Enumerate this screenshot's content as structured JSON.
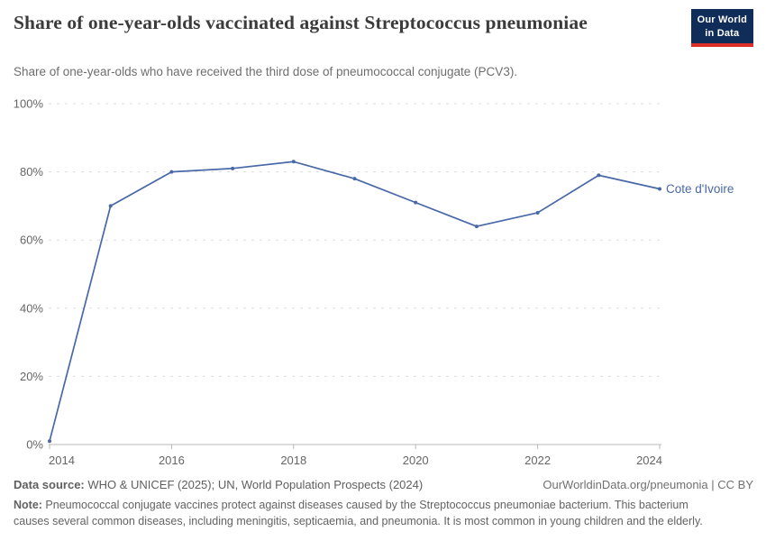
{
  "header": {
    "title": "Share of one-year-olds vaccinated against Streptococcus pneumoniae",
    "subtitle": "Share of one-year-olds who have received the third dose of pneumococcal conjugate (PCV3).",
    "logo": {
      "line1": "Our World",
      "line2": "in Data",
      "bg_color": "#102d59",
      "accent_color": "#dc2f27"
    }
  },
  "chart_data": {
    "type": "line",
    "title": "Share of one-year-olds vaccinated against Streptococcus pneumoniae",
    "x": [
      2014,
      2015,
      2016,
      2017,
      2018,
      2019,
      2020,
      2021,
      2022,
      2023,
      2024
    ],
    "series": [
      {
        "name": "Cote d'Ivoire",
        "color": "#4868a8",
        "values": [
          1,
          70,
          80,
          81,
          83,
          78,
          71,
          64,
          68,
          79,
          75
        ]
      }
    ],
    "end_label": "Cote d'Ivoire",
    "xlim": [
      2014,
      2024
    ],
    "ylim": [
      0,
      100
    ],
    "x_ticks": [
      2014,
      2016,
      2018,
      2020,
      2022,
      2024
    ],
    "y_tick_values": [
      0,
      20,
      40,
      60,
      80,
      100
    ],
    "y_tick_labels": [
      "0%",
      "20%",
      "40%",
      "60%",
      "80%",
      "100%"
    ],
    "grid": "horizontal-dashed",
    "legend_position": "end-of-line",
    "axis_color": "#b8b8b8",
    "grid_color": "#dddddd",
    "tick_label_color": "#666666"
  },
  "footer": {
    "data_source_label": "Data source:",
    "data_source": " WHO & UNICEF (2025); UN, World Population Prospects (2024)",
    "attribution": "OurWorldinData.org/pneumonia | CC BY",
    "note_label": "Note:",
    "note": " Pneumococcal conjugate vaccines protect against diseases caused by the Streptococcus pneumoniae bacterium. This bacterium causes several common diseases, including meningitis, septicaemia, and pneumonia. It is most common in young children and the elderly."
  }
}
